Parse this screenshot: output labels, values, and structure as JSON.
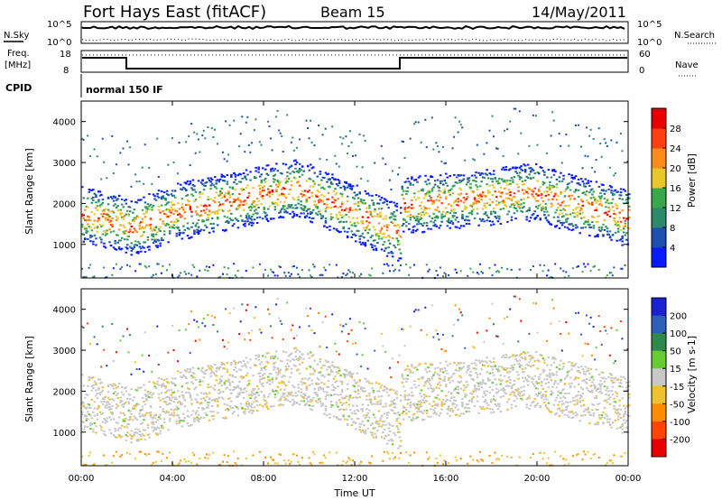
{
  "header": {
    "title": "Fort Hays East (fitACF)",
    "beam": "Beam 15",
    "date": "14/May/2011"
  },
  "top_panel": {
    "nsky_label": "N.Sky",
    "nsky_hi": "10^5",
    "nsky_lo": "10^0",
    "nsearch_label": "N.Search",
    "nsearch_hi": "10^5",
    "nsearch_lo": "10^0",
    "freq_label": "Freq.",
    "freq_unit": "[MHz]",
    "freq_hi": "18",
    "freq_lo": "8",
    "nave_label": "Nave",
    "nave_hi": "60",
    "nave_lo": "0",
    "cpid_label": "CPID",
    "cpid_value": "normal 150 IF"
  },
  "chart_data": [
    {
      "type": "heatmap",
      "panel": "power",
      "ylabel": "Slant Range [km]",
      "xlabel": "",
      "ylim": [
        180,
        4500
      ],
      "yticks": [
        "1000",
        "2000",
        "3000",
        "4000"
      ],
      "colorbar": {
        "label": "Power [dB]",
        "ticks": [
          "4",
          "8",
          "12",
          "16",
          "20",
          "24",
          "28"
        ],
        "colors": [
          "#0a1aff",
          "#1d4fb0",
          "#2c8a6a",
          "#3aa84a",
          "#e7c72b",
          "#ff8b1c",
          "#ff3f12",
          "#e60000"
        ]
      }
    },
    {
      "type": "heatmap",
      "panel": "velocity",
      "ylabel": "Slant Range [km]",
      "xlabel": "Time UT",
      "ylim": [
        180,
        4500
      ],
      "yticks": [
        "1000",
        "2000",
        "3000",
        "4000"
      ],
      "xticks": [
        "00:00",
        "04:00",
        "08:00",
        "12:00",
        "16:00",
        "20:00",
        "00:00"
      ],
      "colorbar": {
        "label": "Velocity [m s-1]",
        "ticks": [
          "200",
          "100",
          "50",
          "15",
          "-15",
          "-50",
          "-100",
          "-200"
        ],
        "colors": [
          "#1a22d0",
          "#2b5fb8",
          "#2e8a4a",
          "#66cc33",
          "#c8c8c8",
          "#f0c030",
          "#ff8c00",
          "#ff4500",
          "#e60000"
        ]
      }
    }
  ],
  "colors": {
    "ground_scatter": "#b4b4b4",
    "power_main": "#ff5a10",
    "velocity_blue": "#1a22d0"
  }
}
